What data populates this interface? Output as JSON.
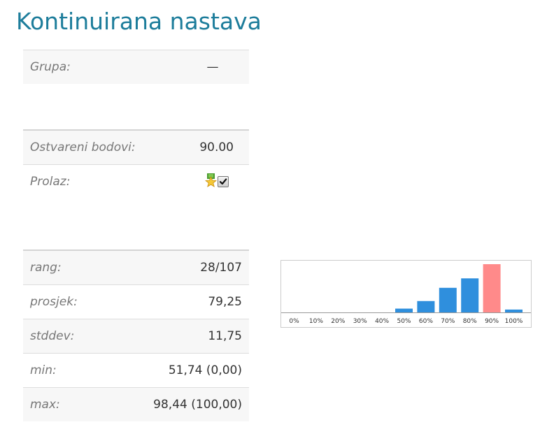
{
  "page": {
    "title": "Kontinuirana nastava"
  },
  "group": {
    "label": "Grupa:",
    "value": "—"
  },
  "score": {
    "points_label": "Ostvareni bodovi:",
    "points_value": "90.00",
    "pass_label": "Prolaz:",
    "pass_checked": true
  },
  "stats": [
    {
      "label": "rang:",
      "value": "28/107"
    },
    {
      "label": "prosjek:",
      "value": "79,25"
    },
    {
      "label": "stddev:",
      "value": "11,75"
    },
    {
      "label": "min:",
      "value": "51,74 (0,00)"
    },
    {
      "label": "max:",
      "value": "98,44 (100,00)"
    }
  ],
  "chart_data": {
    "type": "bar",
    "categories": [
      "0%",
      "10%",
      "20%",
      "30%",
      "40%",
      "50%",
      "60%",
      "70%",
      "80%",
      "90%",
      "100%"
    ],
    "values": [
      0,
      0,
      0,
      0,
      0,
      4,
      12,
      26,
      36,
      51,
      3
    ],
    "highlight_index": 9,
    "colors": {
      "bar": "#2f8fdd",
      "highlight": "#ff8a8a",
      "axis": "#999999"
    },
    "ylim": [
      0,
      51
    ]
  }
}
